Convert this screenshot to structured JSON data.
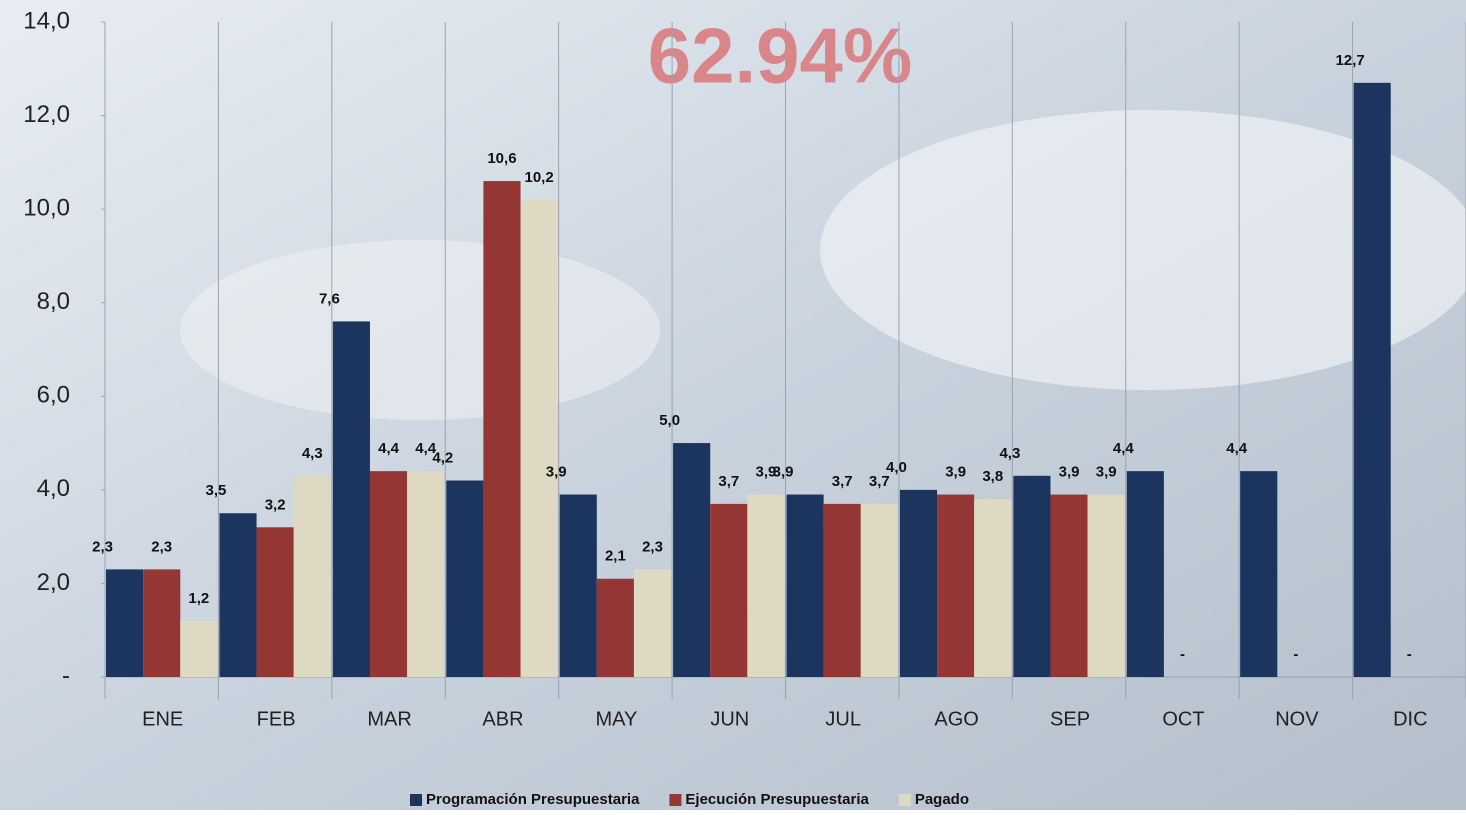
{
  "chart_data": {
    "type": "bar",
    "annotation": "62.94%",
    "categories": [
      "ENE",
      "FEB",
      "MAR",
      "ABR",
      "MAY",
      "JUN",
      "JUL",
      "AGO",
      "SEP",
      "OCT",
      "NOV",
      "DIC"
    ],
    "series": [
      {
        "name": "Programación Presupuestaria",
        "color": "#1c355e",
        "values": [
          2.3,
          3.5,
          7.6,
          4.2,
          3.9,
          5.0,
          3.9,
          4.0,
          4.3,
          4.4,
          4.4,
          12.7
        ],
        "value_labels": [
          "2,3",
          "3,5",
          "7,6",
          "4,2",
          "3,9",
          "5,0",
          "3,9",
          "4,0",
          "4,3",
          "4,4",
          "4,4",
          "12,7"
        ]
      },
      {
        "name": "Ejecución Presupuestaria",
        "color": "#943634",
        "values": [
          2.3,
          3.2,
          4.4,
          10.6,
          2.1,
          3.7,
          3.7,
          3.9,
          3.9,
          0,
          0,
          0
        ],
        "value_labels": [
          "2,3",
          "3,2",
          "4,4",
          "10,6",
          "2,1",
          "3,7",
          "3,7",
          "3,9",
          "3,9",
          "-",
          "-",
          "-"
        ]
      },
      {
        "name": "Pagado",
        "color": "#ddd9c3",
        "values": [
          1.2,
          4.3,
          4.4,
          10.2,
          2.3,
          3.9,
          3.7,
          3.8,
          3.9,
          null,
          null,
          null
        ],
        "value_labels": [
          "1,2",
          "4,3",
          "4,4",
          "10,2",
          "2,3",
          "3,9",
          "3,7",
          "3,8",
          "3,9",
          null,
          null,
          null
        ]
      }
    ],
    "ylim": [
      0,
      14
    ],
    "yticks": [
      {
        "value": 0,
        "label": "-"
      },
      {
        "value": 2,
        "label": "2,0"
      },
      {
        "value": 4,
        "label": "4,0"
      },
      {
        "value": 6,
        "label": "6,0"
      },
      {
        "value": 8,
        "label": "8,0"
      },
      {
        "value": 10,
        "label": "10,0"
      },
      {
        "value": 12,
        "label": "12,0"
      },
      {
        "value": 14,
        "label": "14,0"
      }
    ],
    "legend": "bottom"
  }
}
